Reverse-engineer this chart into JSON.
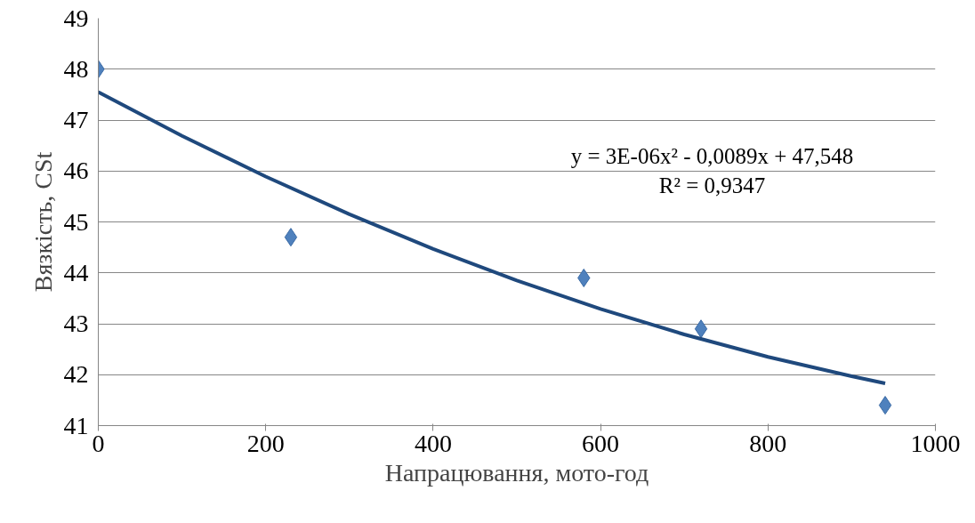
{
  "chart_data": {
    "type": "scatter",
    "xlabel": "Напрацювання, мото-год",
    "ylabel": "Вязкість, CSt",
    "x": [
      0,
      230,
      580,
      720,
      940
    ],
    "series": [
      {
        "color": "#4f81bd",
        "marker": "diamond",
        "values": [
          48,
          44.7,
          43.9,
          42.9,
          41.4
        ]
      },
      {
        "type": "line",
        "color": "#1f497d",
        "marker": "none",
        "x": [
          0,
          100,
          200,
          300,
          400,
          500,
          600,
          700,
          800,
          900,
          940
        ],
        "values": [
          47.55,
          46.69,
          45.89,
          45.15,
          44.47,
          43.85,
          43.29,
          42.79,
          42.35,
          41.97,
          41.83
        ]
      }
    ],
    "annotations": [
      "y = 3E-06x² - 0,0089x + 47,548",
      "R² = 0,9347"
    ],
    "xlim": [
      0,
      1000
    ],
    "xticks": [
      0,
      200,
      400,
      600,
      800,
      1000
    ],
    "ylim": [
      41,
      49
    ],
    "yticks": [
      41,
      42,
      43,
      44,
      45,
      46,
      47,
      48,
      49
    ],
    "grid": "y"
  }
}
